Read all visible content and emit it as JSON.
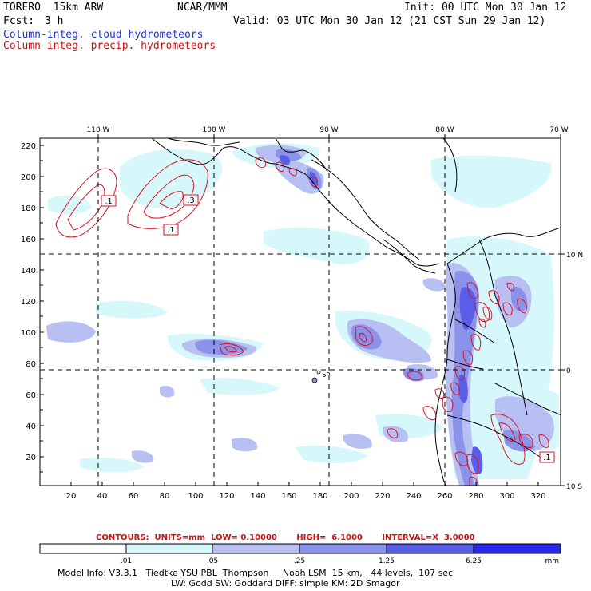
{
  "header": {
    "model": "TORERO  15km ARW",
    "org": "NCAR/MMM",
    "init": "Init: 00 UTC Mon 30 Jan 12",
    "fcst_label": "Fcst:",
    "fcst_value": "3 h",
    "valid": "Valid: 03 UTC Mon 30 Jan 12 (21 CST Sun 29 Jan 12)",
    "field1": "Column-integ. cloud hydrometeors",
    "field2": "Column-integ. precip. hydrometeors"
  },
  "colors": {
    "cloud_text": "#2233cc",
    "precip_text": "#cc1111",
    "shade1": "#d6f8fa",
    "shade2": "#b8bff2",
    "shade3": "#8a92ea",
    "shade4": "#5a5de8",
    "shade5": "#2a26e6",
    "contour": "#dd1122"
  },
  "axes": {
    "top_lon": [
      "110 W",
      "100 W",
      "90 W",
      "80 W",
      "70 W"
    ],
    "right_lat": [
      "10 N",
      "0",
      "10 S"
    ],
    "left_ticks": [
      "220",
      "200",
      "180",
      "160",
      "140",
      "120",
      "100",
      "80",
      "60",
      "40",
      "20"
    ],
    "bottom_ticks": [
      "20",
      "40",
      "60",
      "80",
      "100",
      "120",
      "140",
      "160",
      "180",
      "200",
      "220",
      "240",
      "260",
      "280",
      "300",
      "320"
    ]
  },
  "contour_labels": [
    ".1",
    ".3",
    ".1",
    ".1"
  ],
  "contours_line": {
    "title": "CONTOURS:",
    "units": "UNITS=mm",
    "low": "LOW= 0.10000",
    "high": "HIGH=  6.1000",
    "interval": "INTERVAL=X  3.0000"
  },
  "colorbar": {
    "labels": [
      ".01",
      ".05",
      ".25",
      "1.25",
      "6.25"
    ],
    "units": "mm"
  },
  "footer": {
    "line1": "Model Info: V3.3.1   Tiedtke YSU PBL  Thompson     Noah LSM  15 km,   44 levels,  107 sec",
    "line2": "LW: Godd SW: Goddard DIFF: simple KM: 2D Smagor"
  }
}
